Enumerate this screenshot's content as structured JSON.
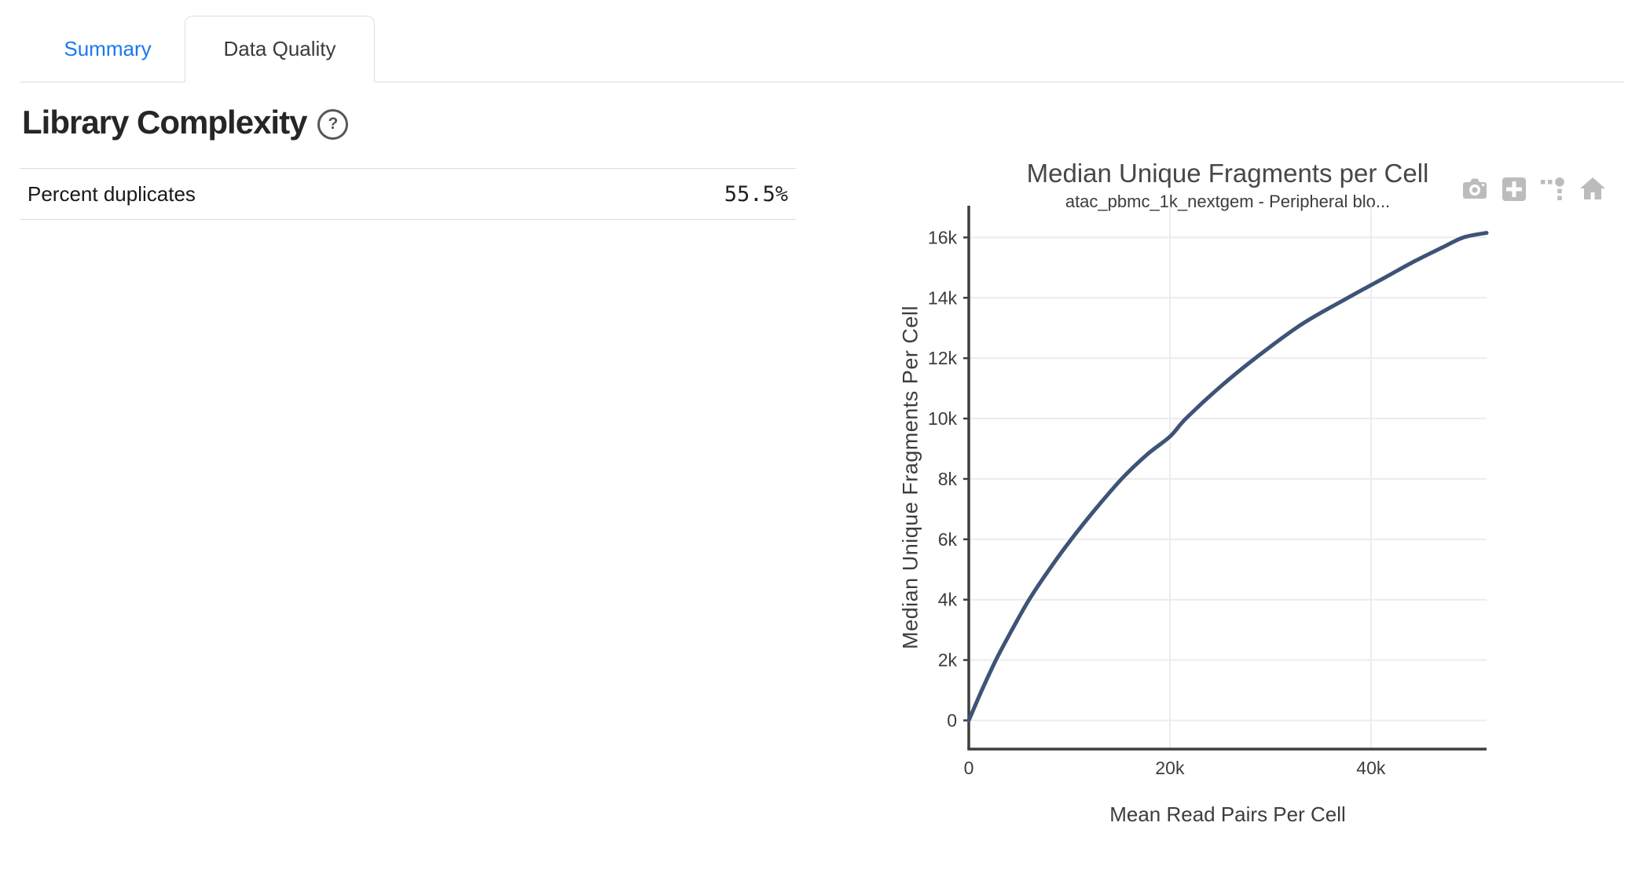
{
  "tabs": [
    {
      "label": "Summary",
      "active": false
    },
    {
      "label": "Data Quality",
      "active": true
    }
  ],
  "section": {
    "title": "Library Complexity",
    "help_label": "?"
  },
  "metrics_table": {
    "rows": [
      {
        "label": "Percent duplicates",
        "value": "55.5%"
      }
    ]
  },
  "chart": {
    "modebar_icons": [
      "camera-icon",
      "zoom-in-icon",
      "spikelines-icon",
      "home-icon"
    ]
  },
  "colors": {
    "accent_blue": "#1b76f2",
    "axis": "#3f3f3f",
    "grid": "#ececec",
    "tick_text": "#3c3c3c",
    "modebar_gray": "#bcbcbc",
    "line": "#3d5477"
  },
  "chart_data": {
    "type": "line",
    "title": "Median Unique Fragments per Cell",
    "subtitle": "atac_pbmc_1k_nextgem - Peripheral blo...",
    "xlabel": "Mean Read Pairs Per Cell",
    "ylabel": "Median Unique Fragments Per Cell",
    "xlim": [
      0,
      51500
    ],
    "ylim": [
      -950,
      17050
    ],
    "grid": true,
    "legend": false,
    "x_ticks": [
      {
        "value": 0,
        "label": "0"
      },
      {
        "value": 20000,
        "label": "20k"
      },
      {
        "value": 40000,
        "label": "40k"
      }
    ],
    "y_ticks": [
      {
        "value": 0,
        "label": "0"
      },
      {
        "value": 2000,
        "label": "2k"
      },
      {
        "value": 4000,
        "label": "4k"
      },
      {
        "value": 6000,
        "label": "6k"
      },
      {
        "value": 8000,
        "label": "8k"
      },
      {
        "value": 10000,
        "label": "10k"
      },
      {
        "value": 12000,
        "label": "12k"
      },
      {
        "value": 14000,
        "label": "14k"
      },
      {
        "value": 16000,
        "label": "16k"
      }
    ],
    "series": [
      {
        "name": "Median unique fragments per cell",
        "color": "#3d5477",
        "points": [
          [
            0,
            0
          ],
          [
            1300,
            1000
          ],
          [
            2700,
            2000
          ],
          [
            4300,
            3000
          ],
          [
            6000,
            4000
          ],
          [
            8000,
            5000
          ],
          [
            10200,
            6000
          ],
          [
            12600,
            7000
          ],
          [
            15200,
            8000
          ],
          [
            17700,
            8800
          ],
          [
            20000,
            9400
          ],
          [
            21600,
            10000
          ],
          [
            25000,
            11050
          ],
          [
            28500,
            12000
          ],
          [
            33000,
            13100
          ],
          [
            37700,
            14000
          ],
          [
            41000,
            14600
          ],
          [
            44000,
            15150
          ],
          [
            47000,
            15650
          ],
          [
            49200,
            16000
          ],
          [
            51500,
            16150
          ]
        ]
      }
    ]
  }
}
